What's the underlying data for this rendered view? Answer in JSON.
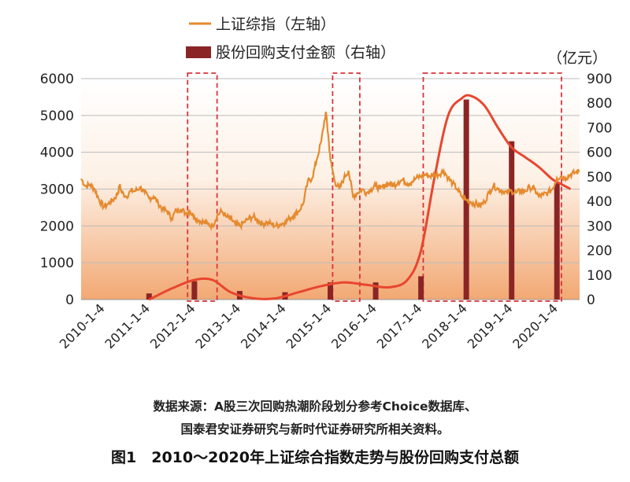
{
  "chart_data": {
    "type": "bar+line",
    "legend": [
      {
        "name": "上证综指（左轴）",
        "kind": "line",
        "color": "#E58A2E"
      },
      {
        "name": "股份回购支付金额（右轴）",
        "kind": "bar",
        "color": "#8B2525"
      }
    ],
    "right_unit": "（亿元）",
    "left_axis": {
      "ticks": [
        "0",
        "1000",
        "2000",
        "3000",
        "4000",
        "5000",
        "6000"
      ],
      "range": [
        0,
        6000
      ]
    },
    "right_axis": {
      "ticks": [
        "0",
        "100",
        "200",
        "300",
        "400",
        "500",
        "600",
        "700",
        "800",
        "900"
      ],
      "range": [
        0,
        900
      ]
    },
    "x_ticks": [
      "2010-1-4",
      "2011-1-4",
      "2012-1-4",
      "2013-1-4",
      "2014-1-4",
      "2015-1-4",
      "2016-1-4",
      "2017-1-4",
      "2018-1-4",
      "2019-1-4",
      "2020-1-4"
    ],
    "x_range": [
      2010.0,
      2021.0
    ],
    "index_series": [
      [
        2010.0,
        3280
      ],
      [
        2010.1,
        3080
      ],
      [
        2010.2,
        3120
      ],
      [
        2010.3,
        3000
      ],
      [
        2010.4,
        2700
      ],
      [
        2010.5,
        2520
      ],
      [
        2010.6,
        2600
      ],
      [
        2010.7,
        2700
      ],
      [
        2010.8,
        2850
      ],
      [
        2010.85,
        3100
      ],
      [
        2010.9,
        2900
      ],
      [
        2011.0,
        2800
      ],
      [
        2011.1,
        2950
      ],
      [
        2011.2,
        2950
      ],
      [
        2011.3,
        3050
      ],
      [
        2011.4,
        2900
      ],
      [
        2011.5,
        2750
      ],
      [
        2011.6,
        2800
      ],
      [
        2011.7,
        2620
      ],
      [
        2011.8,
        2450
      ],
      [
        2011.9,
        2400
      ],
      [
        2012.0,
        2200
      ],
      [
        2012.1,
        2420
      ],
      [
        2012.2,
        2460
      ],
      [
        2012.3,
        2350
      ],
      [
        2012.4,
        2400
      ],
      [
        2012.5,
        2250
      ],
      [
        2012.6,
        2150
      ],
      [
        2012.7,
        2100
      ],
      [
        2012.8,
        2050
      ],
      [
        2012.9,
        2000
      ],
      [
        2013.0,
        2280
      ],
      [
        2013.1,
        2400
      ],
      [
        2013.2,
        2250
      ],
      [
        2013.3,
        2200
      ],
      [
        2013.4,
        2050
      ],
      [
        2013.5,
        2000
      ],
      [
        2013.6,
        2100
      ],
      [
        2013.7,
        2200
      ],
      [
        2013.8,
        2250
      ],
      [
        2013.9,
        2150
      ],
      [
        2014.0,
        2050
      ],
      [
        2014.1,
        2100
      ],
      [
        2014.2,
        2050
      ],
      [
        2014.3,
        2000
      ],
      [
        2014.4,
        2050
      ],
      [
        2014.5,
        2100
      ],
      [
        2014.6,
        2200
      ],
      [
        2014.7,
        2300
      ],
      [
        2014.8,
        2400
      ],
      [
        2014.9,
        2600
      ],
      [
        2015.0,
        3200
      ],
      [
        2015.1,
        3300
      ],
      [
        2015.2,
        3800
      ],
      [
        2015.3,
        4300
      ],
      [
        2015.4,
        5100
      ],
      [
        2015.45,
        4500
      ],
      [
        2015.5,
        3800
      ],
      [
        2015.6,
        3200
      ],
      [
        2015.7,
        3000
      ],
      [
        2015.8,
        3300
      ],
      [
        2015.9,
        3500
      ],
      [
        2016.0,
        2800
      ],
      [
        2016.1,
        2900
      ],
      [
        2016.2,
        3000
      ],
      [
        2016.3,
        2900
      ],
      [
        2016.4,
        3000
      ],
      [
        2016.5,
        3100
      ],
      [
        2016.6,
        3000
      ],
      [
        2016.7,
        3100
      ],
      [
        2016.8,
        3150
      ],
      [
        2016.9,
        3100
      ],
      [
        2017.0,
        3200
      ],
      [
        2017.1,
        3250
      ],
      [
        2017.2,
        3150
      ],
      [
        2017.3,
        3200
      ],
      [
        2017.4,
        3300
      ],
      [
        2017.5,
        3350
      ],
      [
        2017.6,
        3400
      ],
      [
        2017.7,
        3350
      ],
      [
        2017.8,
        3400
      ],
      [
        2017.9,
        3400
      ],
      [
        2018.0,
        3500
      ],
      [
        2018.1,
        3300
      ],
      [
        2018.2,
        3150
      ],
      [
        2018.3,
        3000
      ],
      [
        2018.4,
        2800
      ],
      [
        2018.5,
        2700
      ],
      [
        2018.6,
        2650
      ],
      [
        2018.7,
        2600
      ],
      [
        2018.8,
        2550
      ],
      [
        2018.9,
        2650
      ],
      [
        2019.0,
        2900
      ],
      [
        2019.1,
        3100
      ],
      [
        2019.2,
        3000
      ],
      [
        2019.3,
        2950
      ],
      [
        2019.4,
        2900
      ],
      [
        2019.5,
        2950
      ],
      [
        2019.6,
        2900
      ],
      [
        2019.7,
        2950
      ],
      [
        2019.8,
        2950
      ],
      [
        2019.9,
        3050
      ],
      [
        2020.0,
        3000
      ],
      [
        2020.1,
        2800
      ],
      [
        2020.2,
        2850
      ],
      [
        2020.3,
        2900
      ],
      [
        2020.4,
        3000
      ],
      [
        2020.5,
        3300
      ],
      [
        2020.6,
        3350
      ],
      [
        2020.7,
        3300
      ],
      [
        2020.8,
        3400
      ],
      [
        2020.9,
        3450
      ],
      [
        2021.0,
        3480
      ]
    ],
    "buyback_bars": [
      [
        2011.5,
        25
      ],
      [
        2012.5,
        75
      ],
      [
        2013.5,
        35
      ],
      [
        2014.5,
        30
      ],
      [
        2015.5,
        70
      ],
      [
        2016.5,
        70
      ],
      [
        2017.5,
        95
      ],
      [
        2018.5,
        815
      ],
      [
        2019.5,
        645
      ],
      [
        2020.5,
        475
      ]
    ],
    "buyback_curve": [
      [
        2011.5,
        0
      ],
      [
        2012.0,
        45
      ],
      [
        2012.5,
        80
      ],
      [
        2012.9,
        80
      ],
      [
        2013.3,
        30
      ],
      [
        2013.8,
        5
      ],
      [
        2014.3,
        5
      ],
      [
        2014.8,
        30
      ],
      [
        2015.3,
        55
      ],
      [
        2015.8,
        70
      ],
      [
        2016.3,
        60
      ],
      [
        2016.8,
        50
      ],
      [
        2017.2,
        80
      ],
      [
        2017.5,
        200
      ],
      [
        2017.8,
        500
      ],
      [
        2018.1,
        750
      ],
      [
        2018.4,
        820
      ],
      [
        2018.6,
        830
      ],
      [
        2018.9,
        790
      ],
      [
        2019.2,
        700
      ],
      [
        2019.5,
        620
      ],
      [
        2019.8,
        580
      ],
      [
        2020.1,
        540
      ],
      [
        2020.4,
        490
      ],
      [
        2020.6,
        470
      ],
      [
        2020.8,
        450
      ]
    ],
    "highlight_regions": [
      [
        2012.35,
        2013.0
      ],
      [
        2015.55,
        2016.15
      ],
      [
        2017.55,
        2020.6
      ]
    ]
  },
  "source_note_line1": "数据来源：A股三次回购热潮阶段划分参考Choice数据库、",
  "source_note_line2": "国泰君安证券研究与新时代证券研究所相关资料。",
  "figure_caption": "图1　2010～2020年上证综合指数走势与股份回购支付总额"
}
